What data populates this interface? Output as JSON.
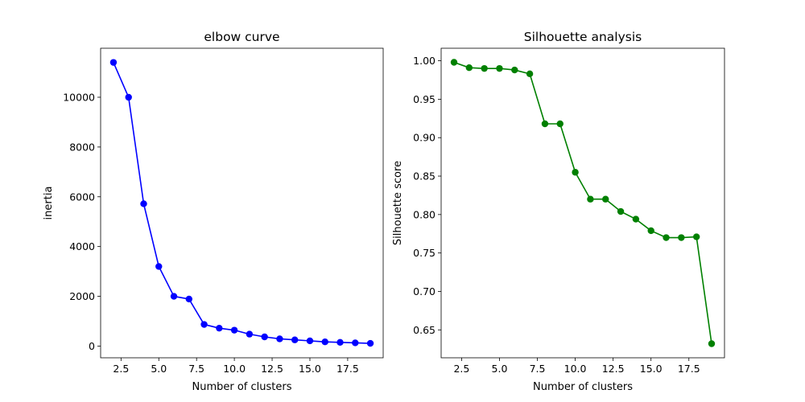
{
  "chart_data": [
    {
      "type": "line",
      "title": "elbow curve",
      "xlabel": "Number of clusters",
      "ylabel": "inertia",
      "color": "#0000ff",
      "marker": "circle",
      "x": [
        2,
        3,
        4,
        5,
        6,
        7,
        8,
        9,
        10,
        11,
        12,
        13,
        14,
        15,
        16,
        17,
        18,
        19
      ],
      "values": [
        11400,
        10000,
        5720,
        3200,
        2000,
        1890,
        870,
        720,
        640,
        480,
        370,
        290,
        250,
        210,
        170,
        150,
        130,
        110
      ],
      "xlim": [
        1.15,
        19.85
      ],
      "ylim": [
        -470,
        11970
      ],
      "xticks": [
        2.5,
        5.0,
        7.5,
        10.0,
        12.5,
        15.0,
        17.5
      ],
      "xtick_labels": [
        "2.5",
        "5.0",
        "7.5",
        "10.0",
        "12.5",
        "15.0",
        "17.5"
      ],
      "yticks": [
        0,
        2000,
        4000,
        6000,
        8000,
        10000
      ],
      "ytick_labels": [
        "0",
        "2000",
        "4000",
        "6000",
        "8000",
        "10000"
      ],
      "grid": false,
      "legend": false
    },
    {
      "type": "line",
      "title": "Silhouette analysis",
      "xlabel": "Number of clusters",
      "ylabel": "Silhouette score",
      "color": "#008000",
      "marker": "circle",
      "x": [
        2,
        3,
        4,
        5,
        6,
        7,
        8,
        9,
        10,
        11,
        12,
        13,
        14,
        15,
        16,
        17,
        18,
        19
      ],
      "values": [
        0.998,
        0.991,
        0.99,
        0.99,
        0.988,
        0.983,
        0.918,
        0.918,
        0.855,
        0.82,
        0.82,
        0.804,
        0.794,
        0.779,
        0.77,
        0.77,
        0.771,
        0.632
      ],
      "xlim": [
        1.15,
        19.85
      ],
      "ylim": [
        0.6137,
        1.0163
      ],
      "xticks": [
        2.5,
        5.0,
        7.5,
        10.0,
        12.5,
        15.0,
        17.5
      ],
      "xtick_labels": [
        "2.5",
        "5.0",
        "7.5",
        "10.0",
        "12.5",
        "15.0",
        "17.5"
      ],
      "yticks": [
        0.65,
        0.7,
        0.75,
        0.8,
        0.85,
        0.9,
        0.95,
        1.0
      ],
      "ytick_labels": [
        "0.65",
        "0.70",
        "0.75",
        "0.80",
        "0.85",
        "0.90",
        "0.95",
        "1.00"
      ],
      "grid": false,
      "legend": false
    }
  ]
}
